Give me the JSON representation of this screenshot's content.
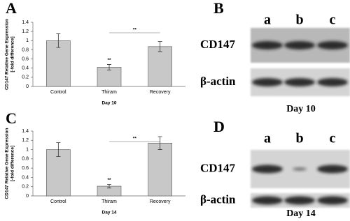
{
  "chart_data": [
    {
      "type": "bar",
      "panel": "A",
      "y_label": [
        "CD147 Relative Gene Expression",
        "[-fold difference]"
      ],
      "x_label": "Day 10",
      "categories": [
        "Control",
        "Thiram",
        "Recovery"
      ],
      "values": [
        1.0,
        0.42,
        0.87
      ],
      "errors": [
        0.15,
        0.06,
        0.11
      ],
      "color": "#c8c8c8",
      "ylim": [
        0,
        1.4
      ],
      "yticks": [
        0,
        0.2,
        0.4,
        0.6,
        0.8,
        1,
        1.2,
        1.4
      ],
      "annotations": [
        "**",
        "**"
      ]
    },
    {
      "type": "bar",
      "panel": "C",
      "y_label": [
        "CD147 Relative Gene Expression",
        "[-fold difference]"
      ],
      "x_label": "Day 14",
      "categories": [
        "Control",
        "Thiram",
        "Recovery"
      ],
      "values": [
        1.0,
        0.21,
        1.14
      ],
      "errors": [
        0.15,
        0.04,
        0.14
      ],
      "color": "#c8c8c8",
      "ylim": [
        0,
        1.4
      ],
      "yticks": [
        0,
        0.2,
        0.4,
        0.6,
        0.8,
        1,
        1.2,
        1.4
      ],
      "annotations": [
        "**",
        "**"
      ]
    }
  ],
  "blots": [
    {
      "panel": "B",
      "lanes": [
        "a",
        "b",
        "c"
      ],
      "rows": [
        "CD147",
        "β-actin"
      ],
      "caption": "Day 10"
    },
    {
      "panel": "D",
      "lanes": [
        "a",
        "b",
        "c"
      ],
      "rows": [
        "CD147",
        "β-actin"
      ],
      "caption": "Day 14"
    }
  ]
}
